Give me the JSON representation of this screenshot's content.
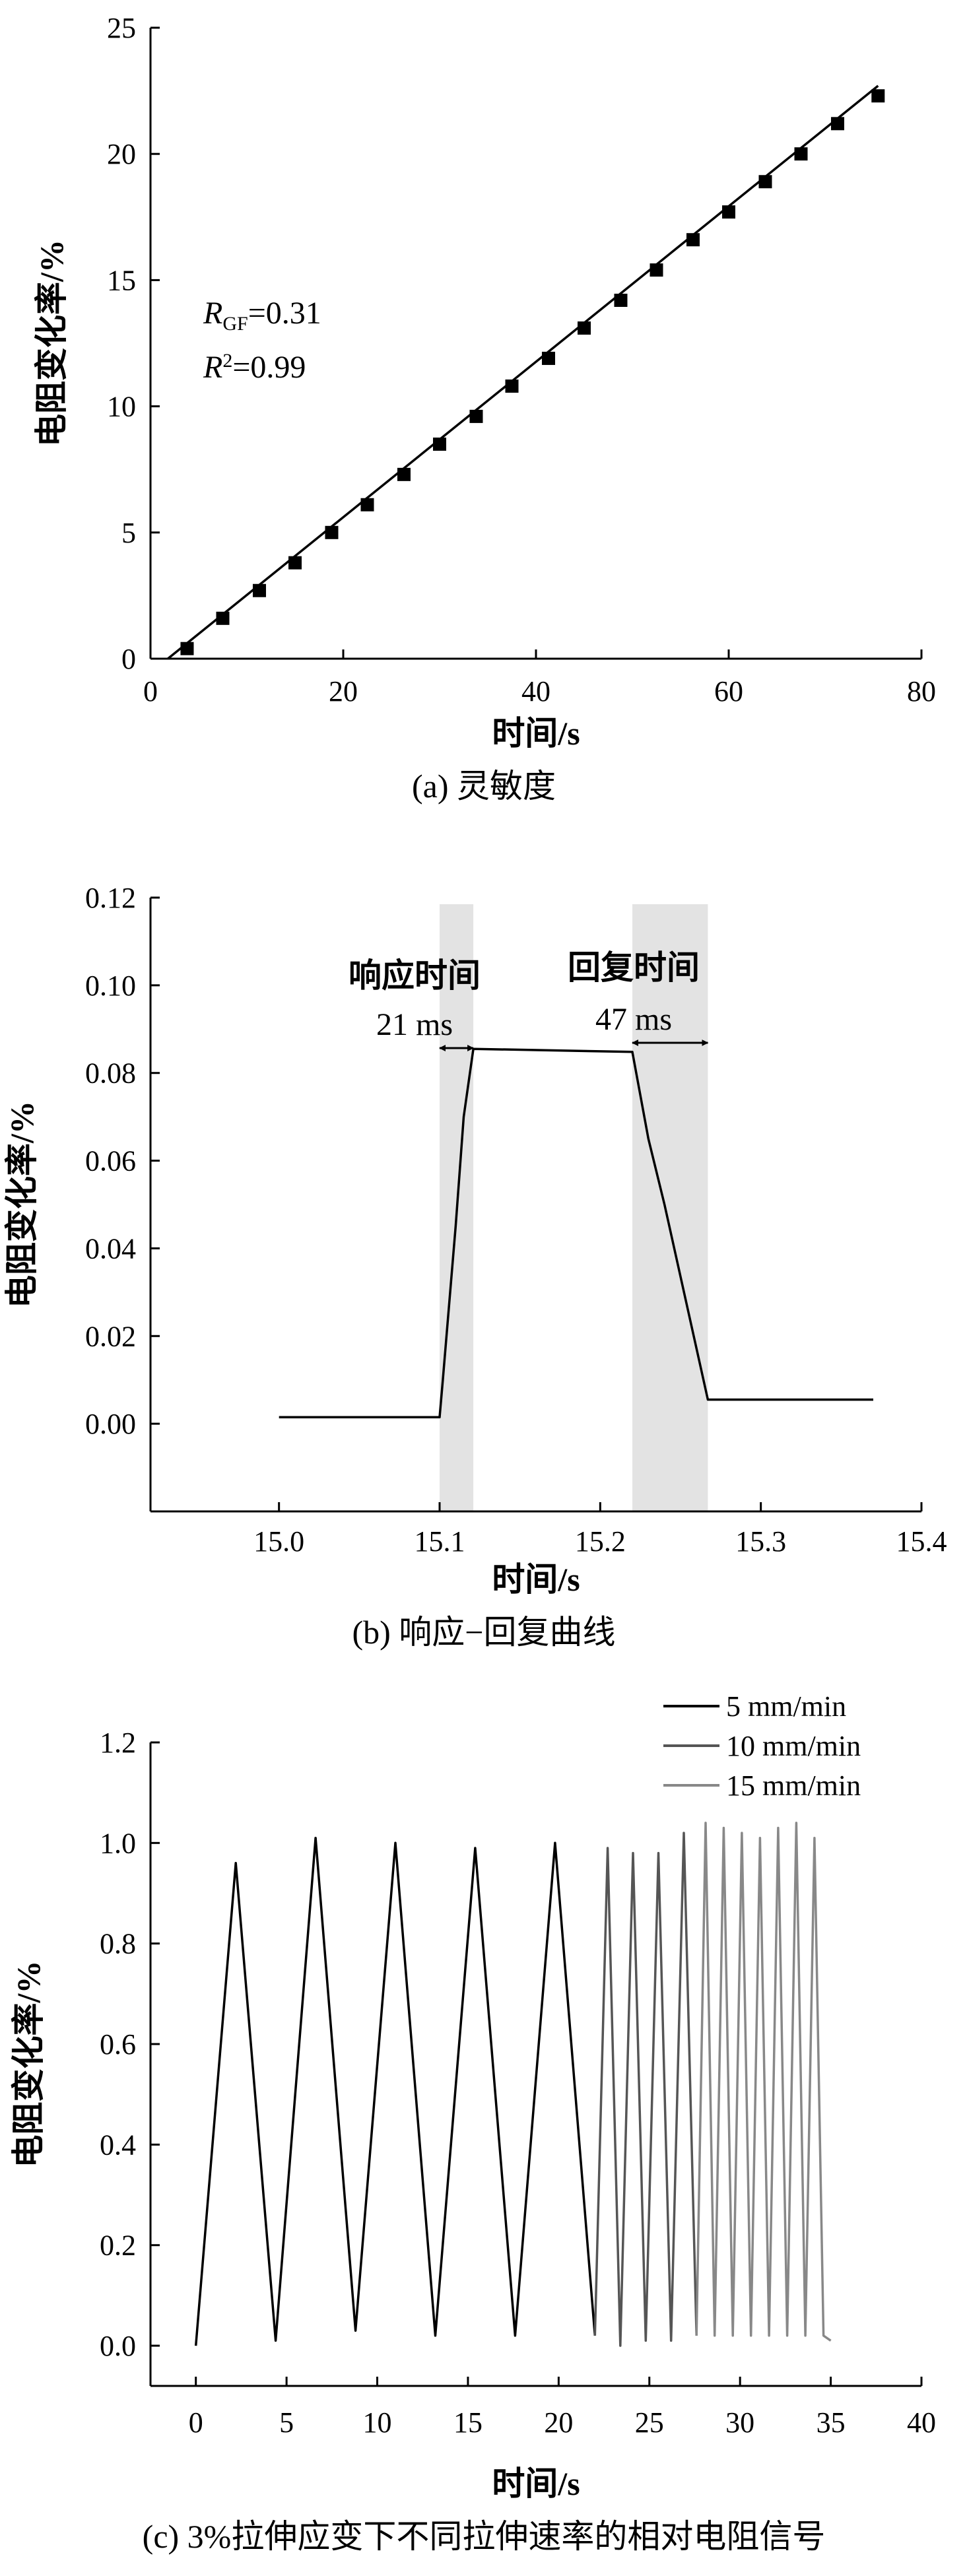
{
  "chart_data": [
    {
      "type": "scatter",
      "caption": "(a) 灵敏度",
      "xlabel": "时间/s",
      "ylabel": "电阻变化率/%",
      "xlim": [
        0,
        80
      ],
      "ylim": [
        0,
        25
      ],
      "xticks": [
        0,
        20,
        40,
        60,
        80
      ],
      "yticks": [
        0,
        5,
        10,
        15,
        20,
        25
      ],
      "annotations": [
        "R",
        "GF",
        "=0.31",
        "R",
        "2",
        "=0.99"
      ],
      "series": [
        {
          "style": "scatter",
          "marker": "square",
          "x": [
            3.8,
            7.5,
            11.3,
            15.0,
            18.8,
            22.5,
            26.3,
            30.0,
            33.8,
            37.5,
            41.3,
            45.0,
            48.8,
            52.5,
            56.3,
            60.0,
            63.8,
            67.5,
            71.3,
            75.5
          ],
          "y": [
            0.4,
            1.6,
            2.7,
            3.8,
            5.0,
            6.1,
            7.3,
            8.5,
            9.6,
            10.8,
            11.9,
            13.1,
            14.2,
            15.4,
            16.6,
            17.7,
            18.9,
            20.0,
            21.2,
            22.3
          ]
        },
        {
          "style": "line",
          "x": [
            1.8,
            75.5
          ],
          "y": [
            0.0,
            22.7
          ]
        }
      ]
    },
    {
      "type": "line",
      "caption": "(b) 响应−回复曲线",
      "xlabel": "时间/s",
      "ylabel": "电阻变化率/%",
      "xlim": [
        14.92,
        15.4
      ],
      "ylim": [
        -0.02,
        0.12
      ],
      "xticks": [
        15.0,
        15.1,
        15.2,
        15.3,
        15.4
      ],
      "yticks": [
        0.0,
        0.02,
        0.04,
        0.06,
        0.08,
        0.1,
        0.12
      ],
      "yticklabels": [
        "0.00",
        "0.02",
        "0.04",
        "0.06",
        "0.08",
        "0.10",
        "0.12"
      ],
      "xticklabels": [
        "15.0",
        "15.1",
        "15.2",
        "15.3",
        "15.4"
      ],
      "shaded": [
        [
          15.1,
          15.121
        ],
        [
          15.22,
          15.267
        ]
      ],
      "annotations": {
        "response_label": "响应时间",
        "response_value": "21 ms",
        "recovery_label": "回复时间",
        "recovery_value": "47 ms"
      },
      "series": [
        {
          "x": [
            15.0,
            15.1,
            15.102,
            15.11,
            15.115,
            15.121,
            15.22,
            15.23,
            15.24,
            15.267,
            15.37
          ],
          "y": [
            0.0015,
            0.0015,
            0.01,
            0.045,
            0.07,
            0.0855,
            0.0848,
            0.065,
            0.05,
            0.0055,
            0.0055
          ]
        }
      ]
    },
    {
      "type": "line",
      "caption": "(c) 3%拉伸应变下不同拉伸速率的相对电阻信号",
      "xlabel": "时间/s",
      "ylabel": "电阻变化率/%",
      "xlim": [
        -2.5,
        40
      ],
      "ylim": [
        -0.08,
        1.2
      ],
      "xticks": [
        0,
        5,
        10,
        15,
        20,
        25,
        30,
        35,
        40
      ],
      "yticks": [
        0.0,
        0.2,
        0.4,
        0.6,
        0.8,
        1.0,
        1.2
      ],
      "yticklabels": [
        "0.0",
        "0.2",
        "0.4",
        "0.6",
        "0.8",
        "1.0",
        "1.2"
      ],
      "legend_position": "top-right",
      "series": [
        {
          "name": "5 mm/min",
          "color": "#000000",
          "x": [
            0.0,
            2.2,
            4.4,
            6.6,
            8.8,
            11.0,
            13.2,
            15.4,
            17.6,
            19.8,
            22.0
          ],
          "y": [
            0.0,
            0.96,
            0.01,
            1.01,
            0.03,
            1.0,
            0.02,
            0.99,
            0.02,
            1.0,
            0.02
          ]
        },
        {
          "name": "10 mm/min",
          "color": "#555555",
          "x": [
            22.0,
            22.7,
            23.4,
            24.1,
            24.8,
            25.5,
            26.2,
            26.9,
            27.6
          ],
          "y": [
            0.02,
            0.99,
            0.0,
            0.98,
            0.01,
            0.98,
            0.01,
            1.02,
            0.02
          ]
        },
        {
          "name": "15 mm/min",
          "color": "#888888",
          "x": [
            27.6,
            28.1,
            28.6,
            29.1,
            29.6,
            30.1,
            30.6,
            31.1,
            31.6,
            32.1,
            32.6,
            33.1,
            33.6,
            34.1,
            34.6,
            35.0
          ],
          "y": [
            0.02,
            1.04,
            0.02,
            1.03,
            0.02,
            1.02,
            0.02,
            1.01,
            0.02,
            1.03,
            0.02,
            1.04,
            0.02,
            1.01,
            0.02,
            0.01
          ]
        }
      ]
    }
  ]
}
